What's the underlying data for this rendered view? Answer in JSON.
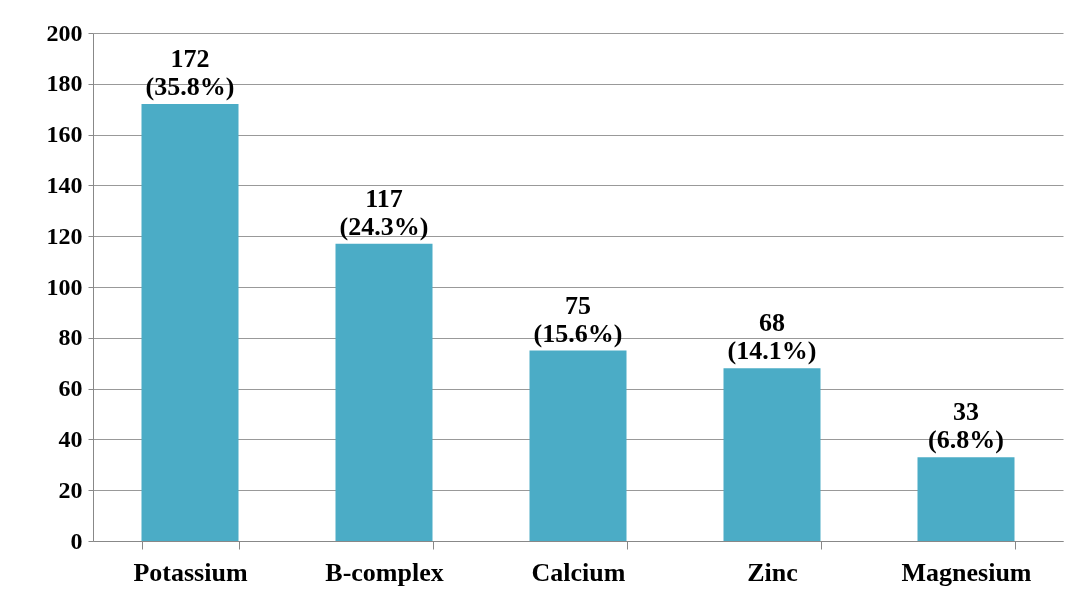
{
  "chart_data": {
    "type": "bar",
    "categories": [
      "Potassium",
      "B-complex",
      "Calcium",
      "Zinc",
      "Magnesium"
    ],
    "values": [
      172,
      117,
      75,
      68,
      33
    ],
    "value_labels": [
      "172\n(35.8%)",
      "117\n(24.3%)",
      "75\n(15.6%)",
      "68\n(14.1%)",
      "33\n(6.8%)"
    ],
    "color": "#4bacc6",
    "ylim": [
      0,
      200
    ],
    "yticks": [
      0,
      20,
      40,
      60,
      80,
      100,
      120,
      140,
      160,
      180,
      200
    ],
    "grid": "y"
  }
}
